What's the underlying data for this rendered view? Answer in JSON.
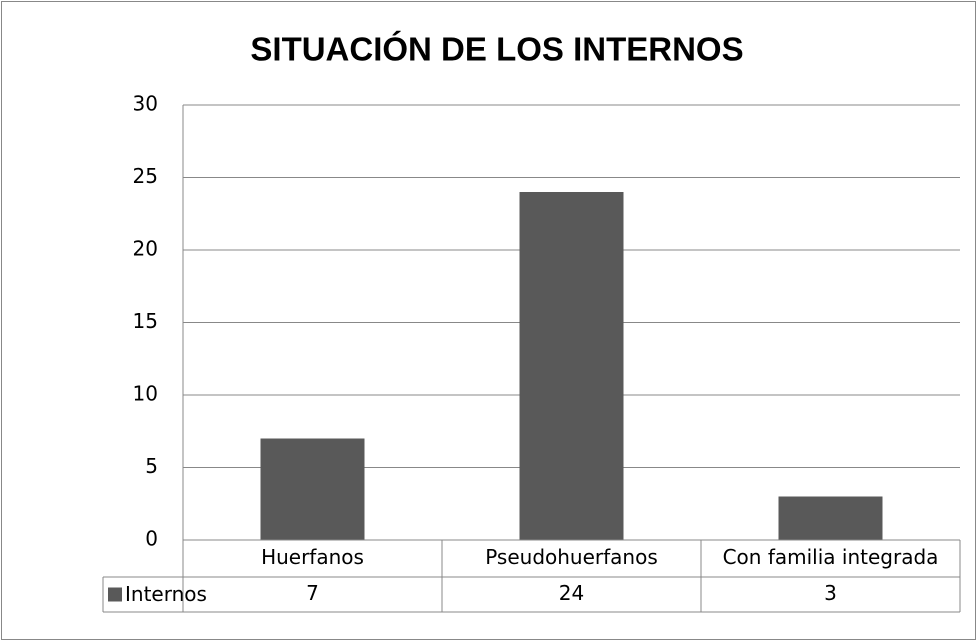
{
  "chart_data": {
    "type": "bar",
    "title": "SITUACIÓN DE LOS INTERNOS",
    "categories": [
      "Huerfanos",
      "Pseudohuerfanos",
      "Con familia integrada"
    ],
    "series": [
      {
        "name": "Internos",
        "color": "#595959",
        "values": [
          7,
          24,
          3
        ]
      }
    ],
    "ylim": [
      0,
      30
    ],
    "yticks": [
      0,
      5,
      10,
      15,
      20,
      25,
      30
    ],
    "grid": true,
    "data_table": true
  }
}
